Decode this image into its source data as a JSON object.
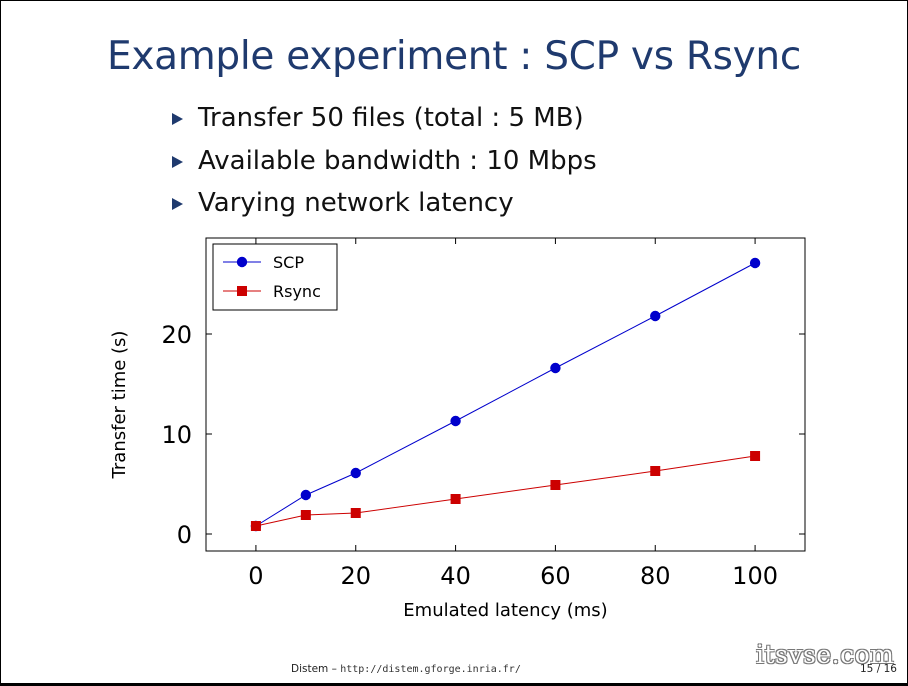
{
  "slide": {
    "title": "Example experiment : SCP vs Rsync",
    "bullets": [
      "Transfer 50 files (total : 5 MB)",
      "Available bandwidth : 10 Mbps",
      "Varying network latency"
    ]
  },
  "footer": {
    "author": "Distem",
    "separator": " – ",
    "url": "http://distem.gforge.inria.fr/",
    "page": "15 / 16"
  },
  "watermark": "itsvse.com",
  "colors": {
    "title": "#1f3a6e",
    "scp": "#0000cc",
    "rsync": "#cc0000"
  },
  "chart_data": {
    "type": "line",
    "xlabel": "Emulated latency (ms)",
    "ylabel": "Transfer time (s)",
    "xlim": [
      -10,
      110
    ],
    "ylim": [
      -1.7,
      29.6
    ],
    "xticks": [
      0,
      20,
      40,
      60,
      80,
      100
    ],
    "yticks": [
      0,
      10,
      20
    ],
    "grid": false,
    "legend_position": "top-left",
    "series": [
      {
        "name": "SCP",
        "marker": "circle",
        "color": "#0000cc",
        "x": [
          0,
          10,
          20,
          40,
          60,
          80,
          100
        ],
        "y": [
          0.8,
          3.9,
          6.1,
          11.3,
          16.6,
          21.8,
          27.1
        ]
      },
      {
        "name": "Rsync",
        "marker": "square",
        "color": "#cc0000",
        "x": [
          0,
          10,
          20,
          40,
          60,
          80,
          100
        ],
        "y": [
          0.8,
          1.9,
          2.1,
          3.5,
          4.9,
          6.3,
          7.8
        ]
      }
    ]
  }
}
